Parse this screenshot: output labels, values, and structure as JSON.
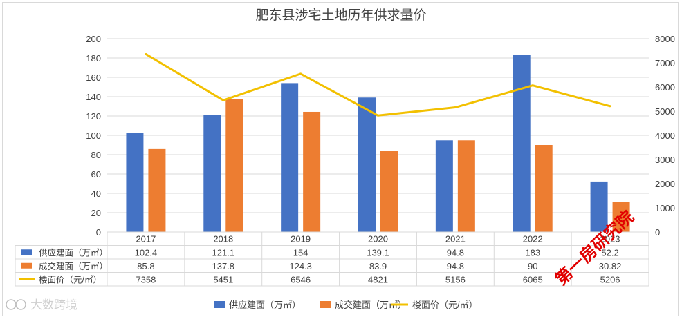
{
  "chart_data": {
    "type": "bar",
    "title": "肥东县涉宅土地历年供求量价",
    "categories": [
      "2017",
      "2018",
      "2019",
      "2020",
      "2021",
      "2022",
      "2023"
    ],
    "series": [
      {
        "name": "供应建面（万㎡）",
        "kind": "bar",
        "axis": "left",
        "color": "#4472c4",
        "values": [
          102.4,
          121.1,
          154,
          139.1,
          94.8,
          183,
          52.2
        ],
        "labels": [
          "102.4",
          "121.1",
          "154",
          "139.1",
          "94.8",
          "183",
          "52.2"
        ]
      },
      {
        "name": "成交建面（万㎡）",
        "kind": "bar",
        "axis": "left",
        "color": "#ed7d31",
        "values": [
          85.8,
          137.8,
          124.3,
          83.9,
          94.8,
          90,
          30.82
        ],
        "labels": [
          "85.8",
          "137.8",
          "124.3",
          "83.9",
          "94.8",
          "90",
          "30.82"
        ]
      },
      {
        "name": "楼面价（元/㎡）",
        "kind": "line",
        "axis": "right",
        "color": "#f2c000",
        "values": [
          7358,
          5451,
          6546,
          4821,
          5156,
          6065,
          5206
        ],
        "labels": [
          "7358",
          "5451",
          "6546",
          "4821",
          "5156",
          "6065",
          "5206"
        ]
      }
    ],
    "ylim_left": [
      0,
      200
    ],
    "yticks_left": [
      "0",
      "20",
      "40",
      "60",
      "80",
      "100",
      "120",
      "140",
      "160",
      "180",
      "200"
    ],
    "ylim_right": [
      0,
      8000
    ],
    "yticks_right": [
      "0",
      "1000",
      "2000",
      "3000",
      "4000",
      "5000",
      "6000",
      "7000",
      "8000"
    ],
    "grid": true,
    "legend_position": "bottom",
    "data_table": true
  },
  "watermarks": {
    "stamp": "第一房研究院",
    "source": "大数跨境"
  }
}
